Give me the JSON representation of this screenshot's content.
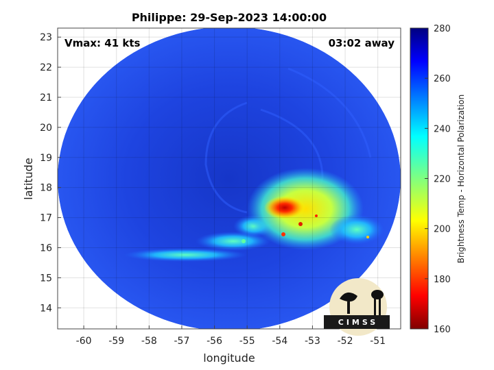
{
  "title": "Philippe: 29-Sep-2023 14:00:00",
  "annotations": {
    "vmax": "Vmax: 41 kts",
    "time_away": "03:02 away"
  },
  "axes": {
    "xlabel": "longitude",
    "ylabel": "latitude",
    "xlim": [
      -60.8,
      -50.3
    ],
    "ylim": [
      13.3,
      23.3
    ],
    "xticks": [
      -60,
      -59,
      -58,
      -57,
      -56,
      -55,
      -54,
      -53,
      -52,
      -51
    ],
    "yticks": [
      14,
      15,
      16,
      17,
      18,
      19,
      20,
      21,
      22,
      23
    ],
    "grid": true
  },
  "colorbar": {
    "label": "Brightness Temp - Horizontal Polarization",
    "range": [
      160,
      280
    ],
    "ticks": [
      160,
      180,
      200,
      220,
      240,
      260,
      280
    ],
    "colormap": "jet",
    "placement": "right"
  },
  "swath": {
    "center_lon": -55.5,
    "center_lat": 18.3,
    "background_temp": 263,
    "features": [
      {
        "type": "cold-core",
        "lon": -54.0,
        "lat": 17.3,
        "temp": 172
      },
      {
        "type": "convection",
        "lon": -53.5,
        "lat": 17.2,
        "temp": 210
      },
      {
        "type": "rainband",
        "lon": -56.0,
        "lat": 15.9,
        "temp": 238
      }
    ]
  },
  "logo": {
    "text": "CIMSS"
  },
  "colors": {
    "swath_background": "#1f3fe0",
    "outside": "#ffffff"
  }
}
